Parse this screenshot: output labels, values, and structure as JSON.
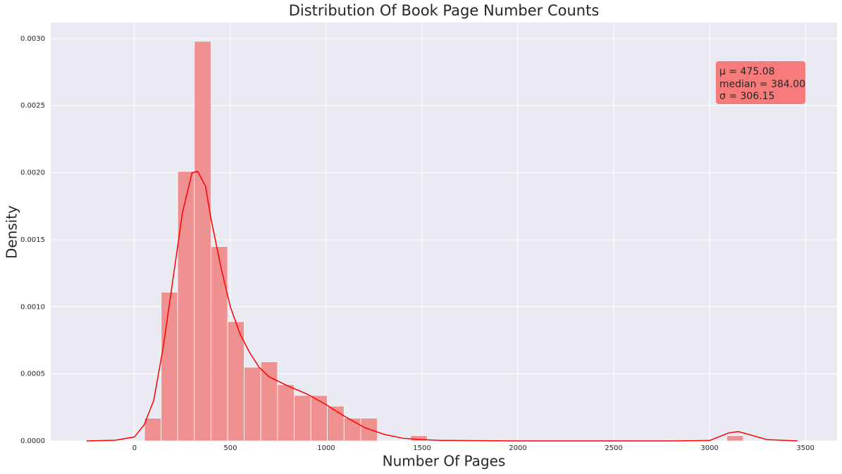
{
  "chart_data": {
    "type": "histogram",
    "title": "Distribution Of Book Page Number Counts",
    "x_label": "Number Of Pages",
    "y_label": "Density",
    "bins": [
      52,
      139,
      225,
      312,
      399,
      486,
      572,
      659,
      746,
      833,
      920,
      1006,
      1093,
      1180,
      1267,
      1354,
      1440,
      1527,
      1614,
      1701,
      1788,
      1874,
      1961,
      2048,
      2135,
      2222,
      2308,
      2395,
      2482,
      2569,
      2656,
      2742,
      2829,
      2916,
      3003,
      3090,
      3176
    ],
    "values": [
      0.00017,
      0.00111,
      0.00201,
      0.00298,
      0.00145,
      0.00089,
      0.00055,
      0.00059,
      0.00042,
      0.00034,
      0.00034,
      0.00026,
      0.00017,
      0.00017,
      0,
      0,
      4e-05,
      0,
      0,
      0,
      0,
      0,
      0,
      0,
      0,
      0,
      0,
      0,
      0,
      0,
      0,
      0,
      0,
      0,
      0,
      4e-05
    ],
    "color": "#f08080",
    "kde": {
      "color": "#ff0000",
      "x": [
        -250,
        -100,
        0,
        50,
        100,
        150,
        200,
        250,
        300,
        330,
        370,
        400,
        450,
        500,
        550,
        600,
        650,
        700,
        800,
        900,
        1000,
        1100,
        1200,
        1300,
        1400,
        1500,
        1600,
        2000,
        2800,
        3000,
        3100,
        3150,
        3200,
        3300,
        3460
      ],
      "values": [
        0,
        5e-06,
        3e-05,
        0.00012,
        0.0003,
        0.0007,
        0.0012,
        0.0017,
        0.002,
        0.00201,
        0.0019,
        0.00165,
        0.0013,
        0.001,
        0.0008,
        0.00066,
        0.00055,
        0.00048,
        0.00041,
        0.00035,
        0.00027,
        0.00018,
        0.0001,
        5e-05,
        2e-05,
        1e-05,
        4e-06,
        0,
        0,
        3e-06,
        6e-05,
        7e-05,
        5e-05,
        1e-05,
        0
      ]
    },
    "annotation": [
      "μ = 475.08",
      "median = 384.00",
      "σ = 306.15"
    ],
    "xlim": [
      -437,
      3665
    ],
    "ylim": [
      0,
      0.00312
    ],
    "xticks": [
      0,
      500,
      1000,
      1500,
      2000,
      2500,
      3000,
      3500
    ],
    "yticks": [
      {
        "value": 0,
        "label": "0.0000"
      },
      {
        "value": 0.0005,
        "label": "0.0005"
      },
      {
        "value": 0.001,
        "label": "0.0010"
      },
      {
        "value": 0.0015,
        "label": "0.0015"
      },
      {
        "value": 0.002,
        "label": "0.0020"
      },
      {
        "value": 0.0025,
        "label": "0.0025"
      },
      {
        "value": 0.003,
        "label": "0.0030"
      }
    ],
    "grid": true
  }
}
